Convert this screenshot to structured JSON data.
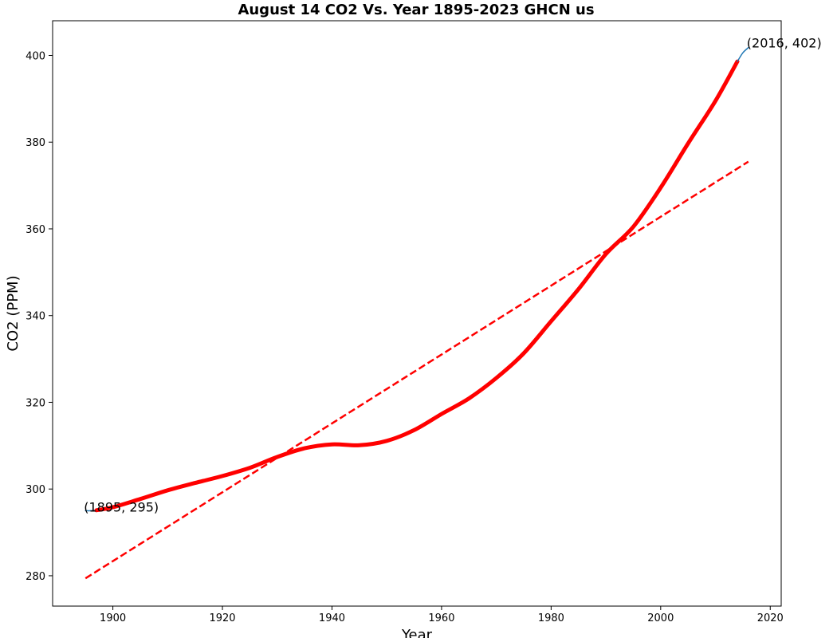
{
  "chart_data": {
    "type": "line",
    "title": "August 14 CO2 Vs. Year 1895-2023 GHCN us",
    "xlabel": "Year",
    "ylabel": "CO2 (PPM)",
    "xlim": [
      1889,
      2022
    ],
    "ylim": [
      273,
      408
    ],
    "xticks": [
      1900,
      1920,
      1940,
      1960,
      1980,
      2000,
      2020
    ],
    "yticks": [
      280,
      300,
      320,
      340,
      360,
      380,
      400
    ],
    "grid": false,
    "series": [
      {
        "style": "thin-line",
        "color": "#1f77b4",
        "x": [
          1895,
          1896,
          1897
        ],
        "y": [
          295,
          295,
          295.1
        ]
      },
      {
        "style": "thick-line",
        "color": "#ff0000",
        "x": [
          1897,
          1900,
          1905,
          1910,
          1915,
          1920,
          1925,
          1930,
          1935,
          1940,
          1945,
          1950,
          1955,
          1960,
          1965,
          1970,
          1975,
          1980,
          1985,
          1990,
          1995,
          2000,
          2005,
          2010,
          2014
        ],
        "y": [
          295.1,
          295.8,
          297.7,
          299.7,
          301.4,
          303,
          304.9,
          307.4,
          309.4,
          310.3,
          310.1,
          311.1,
          313.6,
          317.3,
          320.9,
          325.6,
          331.3,
          338.7,
          346.1,
          354.2,
          360.5,
          369.5,
          379.7,
          389.5,
          398.6
        ]
      },
      {
        "style": "thin-line",
        "color": "#1f77b4",
        "x": [
          2014,
          2015,
          2016
        ],
        "y": [
          398.6,
          400.6,
          401.8
        ]
      },
      {
        "style": "dashed-line",
        "color": "#ff0000",
        "x": [
          1895,
          2016
        ],
        "y": [
          279.4,
          375.5
        ]
      }
    ],
    "annotations": [
      {
        "text": "(1895, 295)",
        "x": 1895,
        "y": 295
      },
      {
        "text": "(2016, 402)",
        "x": 2016,
        "y": 402
      }
    ]
  }
}
